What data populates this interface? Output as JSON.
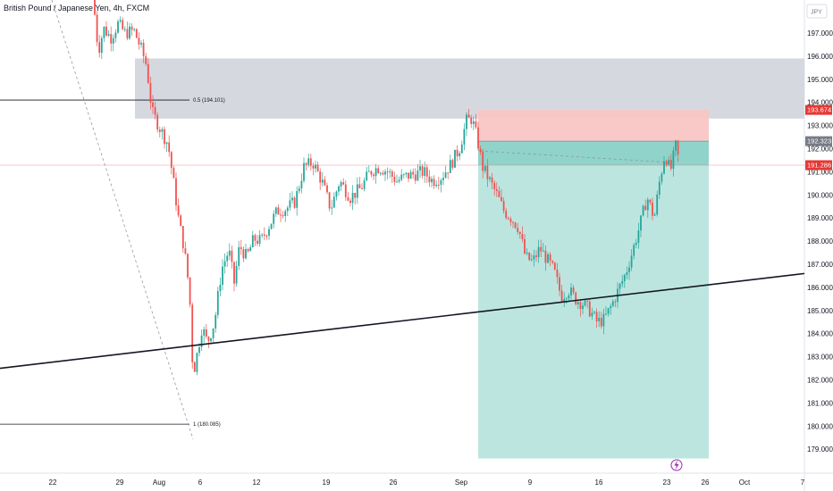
{
  "header": {
    "symbol_title": "British Pound / Japanese Yen, 4h, FXCM",
    "currency": "JPY"
  },
  "colors": {
    "up": "#26a69a",
    "down": "#ef5350",
    "stop_zone": "#f9c6c4",
    "target_zone": "#b2e0da",
    "grey_zone": "#d1d4dc",
    "entry_line": "#f3b8b6",
    "tag_red": "#e53935",
    "tag_grey": "#787b86"
  },
  "price_tags": {
    "stop": "193.674",
    "entry": "192.323",
    "current": "191.286"
  },
  "fib_labels": {
    "upper": "0.5 (194.101)",
    "lower": "1 (180.085)"
  },
  "chart_data": {
    "type": "candlestick",
    "title": "British Pound / Japanese Yen, 4h, FXCM",
    "ylim": [
      178.5,
      198.3
    ],
    "y_ticks": [
      "179.000",
      "180.000",
      "181.000",
      "182.000",
      "183.000",
      "184.000",
      "185.000",
      "186.000",
      "187.000",
      "188.000",
      "189.000",
      "190.000",
      "191.000",
      "192.000",
      "193.000",
      "194.000",
      "195.000",
      "196.000",
      "197.000"
    ],
    "x_ticks": [
      "22",
      "29",
      "Aug",
      "6",
      "12",
      "19",
      "26",
      "Sep",
      "9",
      "16",
      "23",
      "26",
      "Oct",
      "7"
    ],
    "grid": false,
    "price_path": [
      [
        104,
        198.6
      ],
      [
        110,
        196.2
      ],
      [
        116,
        197.2
      ],
      [
        124,
        196.8
      ],
      [
        132,
        197.4
      ],
      [
        140,
        197.0
      ],
      [
        150,
        197.1
      ],
      [
        158,
        196.3
      ],
      [
        164,
        195.6
      ],
      [
        170,
        193.6
      ],
      [
        180,
        192.8
      ],
      [
        188,
        192.2
      ],
      [
        194,
        190.6
      ],
      [
        200,
        188.9
      ],
      [
        206,
        187.7
      ],
      [
        212,
        185.8
      ],
      [
        216,
        182.2
      ],
      [
        220,
        183.0
      ],
      [
        226,
        184.3
      ],
      [
        232,
        183.6
      ],
      [
        240,
        184.5
      ],
      [
        248,
        186.8
      ],
      [
        256,
        187.6
      ],
      [
        262,
        186.2
      ],
      [
        268,
        187.8
      ],
      [
        276,
        187.3
      ],
      [
        284,
        188.1
      ],
      [
        292,
        188.0
      ],
      [
        300,
        188.6
      ],
      [
        310,
        189.3
      ],
      [
        320,
        189.4
      ],
      [
        330,
        189.7
      ],
      [
        340,
        191.2
      ],
      [
        350,
        191.4
      ],
      [
        360,
        190.6
      ],
      [
        370,
        189.4
      ],
      [
        380,
        190.6
      ],
      [
        392,
        189.9
      ],
      [
        404,
        190.3
      ],
      [
        414,
        191.0
      ],
      [
        424,
        191.2
      ],
      [
        434,
        191.0
      ],
      [
        444,
        190.6
      ],
      [
        454,
        190.8
      ],
      [
        464,
        190.9
      ],
      [
        474,
        191.0
      ],
      [
        484,
        190.6
      ],
      [
        494,
        190.8
      ],
      [
        504,
        191.3
      ],
      [
        514,
        192.0
      ],
      [
        522,
        193.2
      ],
      [
        528,
        193.3
      ],
      [
        534,
        192.4
      ],
      [
        540,
        191.2
      ],
      [
        548,
        190.6
      ],
      [
        556,
        190.0
      ],
      [
        564,
        189.3
      ],
      [
        572,
        189.0
      ],
      [
        580,
        188.6
      ],
      [
        588,
        187.3
      ],
      [
        596,
        187.1
      ],
      [
        604,
        187.7
      ],
      [
        612,
        187.2
      ],
      [
        620,
        186.7
      ],
      [
        628,
        185.6
      ],
      [
        636,
        185.9
      ],
      [
        644,
        185.5
      ],
      [
        652,
        185.3
      ],
      [
        660,
        185.0
      ],
      [
        668,
        184.5
      ],
      [
        676,
        184.6
      ],
      [
        684,
        185.2
      ],
      [
        692,
        185.9
      ],
      [
        700,
        186.6
      ],
      [
        708,
        187.6
      ],
      [
        716,
        188.7
      ],
      [
        724,
        189.9
      ],
      [
        732,
        189.0
      ],
      [
        738,
        190.6
      ],
      [
        744,
        191.8
      ],
      [
        750,
        191.0
      ],
      [
        756,
        192.1
      ],
      [
        760,
        191.4
      ]
    ],
    "trend_line": {
      "from": [
        0,
        182.5
      ],
      "to": [
        900,
        186.6
      ]
    },
    "fib_levels": [
      {
        "label": "0.5 (194.101)",
        "value": 194.101
      },
      {
        "label": "1 (180.085)",
        "value": 180.085
      }
    ],
    "supply_zone": [
      193.3,
      195.9
    ],
    "short_position": {
      "stop": 193.674,
      "entry": 192.323,
      "target": 178.6
    },
    "current_price": 191.286
  }
}
